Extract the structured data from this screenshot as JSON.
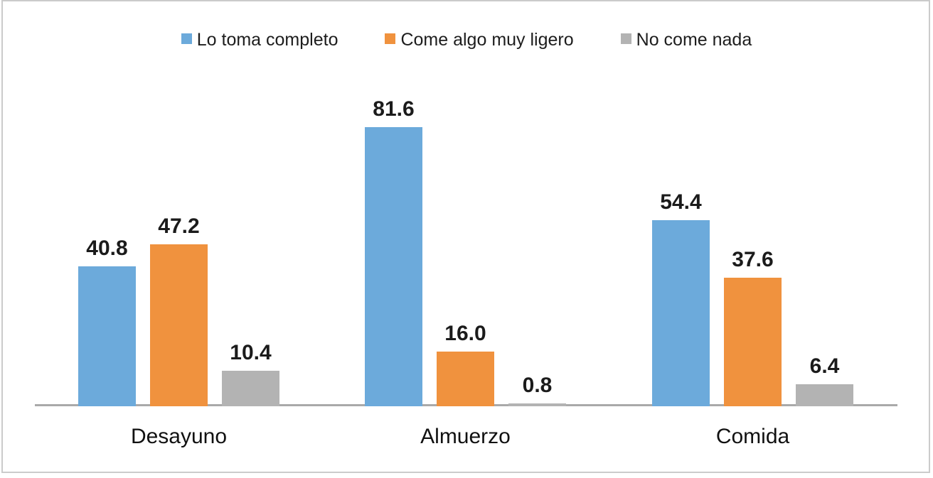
{
  "chart_data": {
    "type": "bar",
    "title": "",
    "xlabel": "",
    "ylabel": "",
    "categories": [
      "Desayuno",
      "Almuerzo",
      "Comida"
    ],
    "series": [
      {
        "name": "Lo toma completo",
        "values": [
          40.8,
          81.6,
          54.4
        ],
        "labels": [
          "40.8",
          "81.6",
          "54.4"
        ],
        "color": "#6caadb"
      },
      {
        "name": "Come algo muy ligero",
        "values": [
          47.2,
          16.0,
          37.6
        ],
        "labels": [
          "47.2",
          "16.0",
          "37.6"
        ],
        "color": "#f0923e"
      },
      {
        "name": "No come nada",
        "values": [
          10.4,
          0.8,
          6.4
        ],
        "labels": [
          "10.4",
          "0.8",
          "6.4"
        ],
        "color": "#b3b3b3"
      }
    ],
    "legend_position": "top",
    "legend_text_color": "#1d1d1d",
    "data_labels_shown": true,
    "data_label_color": "#1b1b1b",
    "grid": false,
    "y_axis_visible": false,
    "ylim": [
      0,
      90
    ],
    "axis_line_color": "#a9a9a9",
    "frame_border_color": "#cbcbcb",
    "background_color": "#ffffff"
  }
}
